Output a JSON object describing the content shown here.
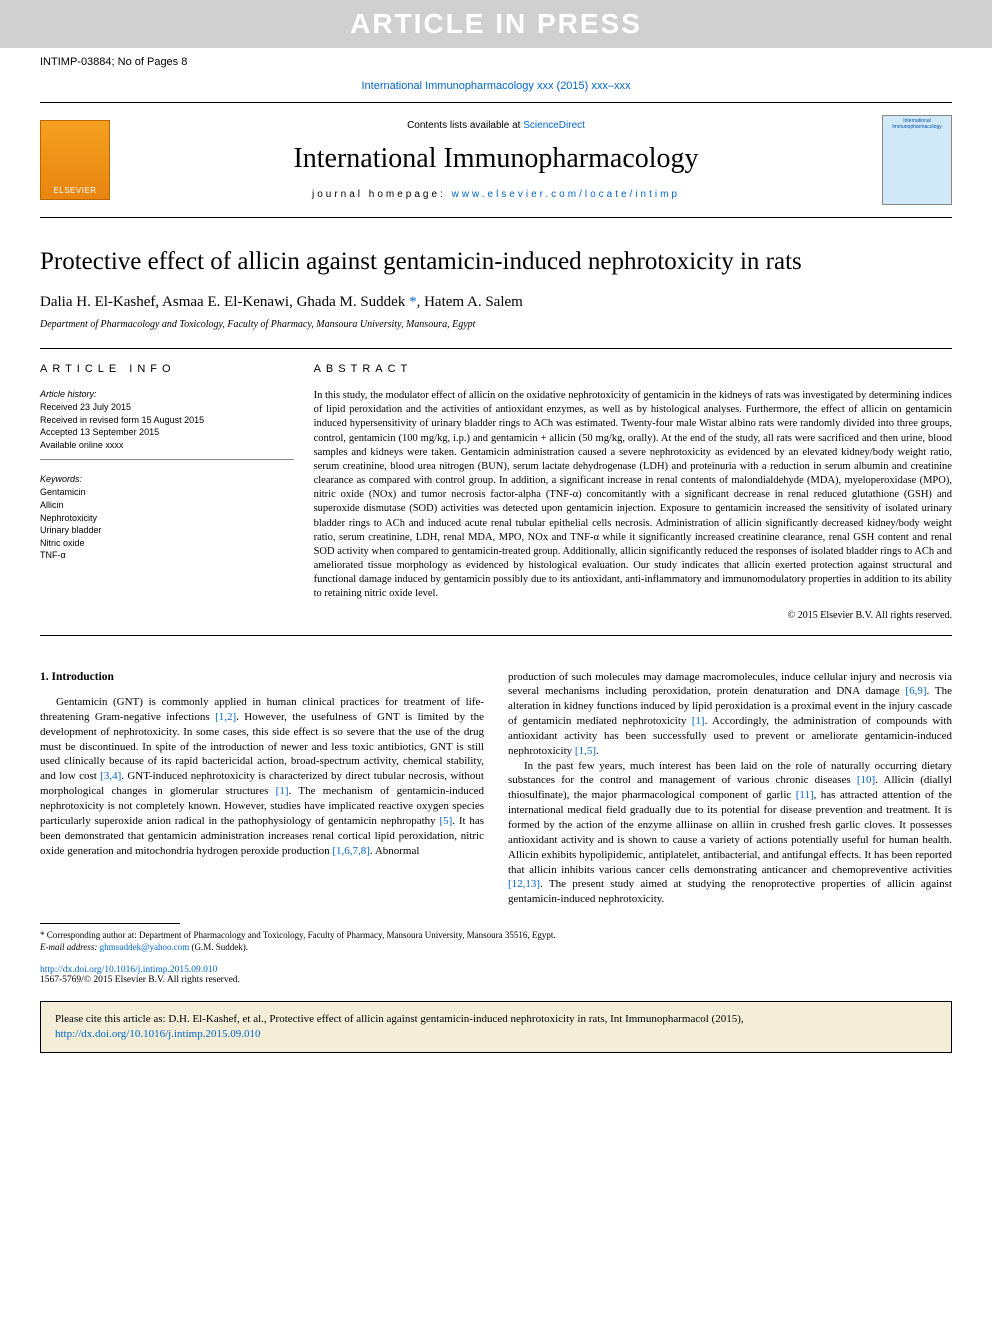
{
  "banner": {
    "text": "ARTICLE IN PRESS"
  },
  "header": {
    "ref_code": "INTIMP-03884; No of Pages 8",
    "journal_ref": "International Immunopharmacology xxx (2015) xxx–xxx"
  },
  "journal_box": {
    "elsevier": "ELSEVIER",
    "contents_prefix": "Contents lists available at ",
    "contents_link": "ScienceDirect",
    "title": "International Immunopharmacology",
    "homepage_label": "journal homepage: ",
    "homepage_url": "www.elsevier.com/locate/intimp",
    "cover_label": "International Immunopharmacology"
  },
  "article": {
    "title": "Protective effect of allicin against gentamicin-induced nephrotoxicity in rats",
    "authors_pre": "Dalia H. El-Kashef, Asmaa E. El-Kenawi, Ghada M. Suddek ",
    "corr_mark": "*",
    "authors_post": ", Hatem A. Salem",
    "affiliation": "Department of Pharmacology and Toxicology, Faculty of Pharmacy, Mansoura University, Mansoura, Egypt"
  },
  "info": {
    "heading": "ARTICLE INFO",
    "history_label": "Article history:",
    "history": "Received 23 July 2015\nReceived in revised form 15 August 2015\nAccepted 13 September 2015\nAvailable online xxxx",
    "keywords_label": "Keywords:",
    "keywords": "Gentamicin\nAllicin\nNephrotoxicity\nUrinary bladder\nNitric oxide\nTNF-α"
  },
  "abstract": {
    "heading": "ABSTRACT",
    "text": "In this study, the modulator effect of allicin on the oxidative nephrotoxicity of gentamicin in the kidneys of rats was investigated by determining indices of lipid peroxidation and the activities of antioxidant enzymes, as well as by histological analyses. Furthermore, the effect of allicin on gentamicin induced hypersensitivity of urinary bladder rings to ACh was estimated. Twenty-four male Wistar albino rats were randomly divided into three groups, control, gentamicin (100 mg/kg, i.p.) and gentamicin + allicin (50 mg/kg, orally). At the end of the study, all rats were sacrificed and then urine, blood samples and kidneys were taken. Gentamicin administration caused a severe nephrotoxicity as evidenced by an elevated kidney/body weight ratio, serum creatinine, blood urea nitrogen (BUN), serum lactate dehydrogenase (LDH) and proteinuria with a reduction in serum albumin and creatinine clearance as compared with control group. In addition, a significant increase in renal contents of malondialdehyde (MDA), myeloperoxidase (MPO), nitric oxide (NOx) and tumor necrosis factor-alpha (TNF-α) concomitantly with a significant decrease in renal reduced glutathione (GSH) and superoxide dismutase (SOD) activities was detected upon gentamicin injection. Exposure to gentamicin increased the sensitivity of isolated urinary bladder rings to ACh and induced acute renal tubular epithelial cells necrosis. Administration of allicin significantly decreased kidney/body weight ratio, serum creatinine, LDH, renal MDA, MPO, NOx and TNF-α while it significantly increased creatinine clearance, renal GSH content and renal SOD activity when compared to gentamicin-treated group. Additionally, allicin significantly reduced the responses of isolated bladder rings to ACh and ameliorated tissue morphology as evidenced by histological evaluation. Our study indicates that allicin exerted protection against structural and functional damage induced by gentamicin possibly due to its antioxidant, anti-inflammatory and immunomodulatory properties in addition to its ability to retaining nitric oxide level.",
    "copyright": "© 2015 Elsevier B.V. All rights reserved."
  },
  "body": {
    "intro_heading": "1. Introduction",
    "col1_p1a": "Gentamicin (GNT) is commonly applied in human clinical practices for treatment of life-threatening Gram-negative infections ",
    "col1_r1": "[1,2]",
    "col1_p1b": ". However, the usefulness of GNT is limited by the development of nephrotoxicity. In some cases, this side effect is so severe that the use of the drug must be discontinued. In spite of the introduction of newer and less toxic antibiotics, GNT is still used clinically because of its rapid bactericidal action, broad-spectrum activity, chemical stability, and low cost ",
    "col1_r2": "[3,4]",
    "col1_p1c": ". GNT-induced nephrotoxicity is characterized by direct tubular necrosis, without morphological changes in glomerular structures ",
    "col1_r3": "[1]",
    "col1_p1d": ". The mechanism of gentamicin-induced nephrotoxicity is not completely known. However, studies have implicated reactive oxygen species particularly superoxide anion radical in the pathophysiology of gentamicin nephropathy ",
    "col1_r4": "[5]",
    "col1_p1e": ". It has been demonstrated that gentamicin administration increases renal cortical lipid peroxidation, nitric oxide generation and mitochondria hydrogen peroxide production ",
    "col1_r5": "[1,6,7,8]",
    "col1_p1f": ". Abnormal",
    "col2_p1a": "production of such molecules may damage macromolecules, induce cellular injury and necrosis via several mechanisms including peroxidation, protein denaturation and DNA damage ",
    "col2_r1": "[6,9]",
    "col2_p1b": ". The alteration in kidney functions induced by lipid peroxidation is a proximal event in the injury cascade of gentamicin mediated nephrotoxicity ",
    "col2_r2": "[1]",
    "col2_p1c": ". Accordingly, the administration of compounds with antioxidant activity has been successfully used to prevent or ameliorate gentamicin-induced nephrotoxicity ",
    "col2_r3": "[1,5]",
    "col2_p1d": ".",
    "col2_p2a": "In the past few years, much interest has been laid on the role of naturally occurring dietary substances for the control and management of various chronic diseases ",
    "col2_r4": "[10]",
    "col2_p2b": ". Allicin (diallyl thiosulfinate), the major pharmacological component of garlic ",
    "col2_r5": "[11]",
    "col2_p2c": ", has attracted attention of the international medical field gradually due to its potential for disease prevention and treatment. It is formed by the action of the enzyme alliinase on alliin in crushed fresh garlic cloves. It possesses antioxidant activity and is shown to cause a variety of actions potentially useful for human health. Allicin exhibits hypolipidemic, antiplatelet, antibacterial, and antifungal effects. It has been reported that allicin inhibits various cancer cells demonstrating anticancer and chemopreventive activities ",
    "col2_r6": "[12,13]",
    "col2_p2d": ". The present study aimed at studying the renoprotective properties of allicin against gentamicin-induced nephrotoxicity."
  },
  "footnote": {
    "corr_prefix": "* Corresponding author at: ",
    "corr_text": "Department of Pharmacology and Toxicology, Faculty of Pharmacy, Mansoura University, Mansoura 35516, Egypt.",
    "email_label": "E-mail address: ",
    "email": "ghmsuddek@yahoo.com",
    "email_suffix": " (G.M. Suddek)."
  },
  "doi": {
    "url": "http://dx.doi.org/10.1016/j.intimp.2015.09.010",
    "line2": "1567-5769/© 2015 Elsevier B.V. All rights reserved."
  },
  "cite_box": {
    "prefix": "Please cite this article as: D.H. El-Kashef, et al., Protective effect of allicin against gentamicin-induced nephrotoxicity in rats, Int Immunopharmacol (2015), ",
    "url": "http://dx.doi.org/10.1016/j.intimp.2015.09.010"
  }
}
